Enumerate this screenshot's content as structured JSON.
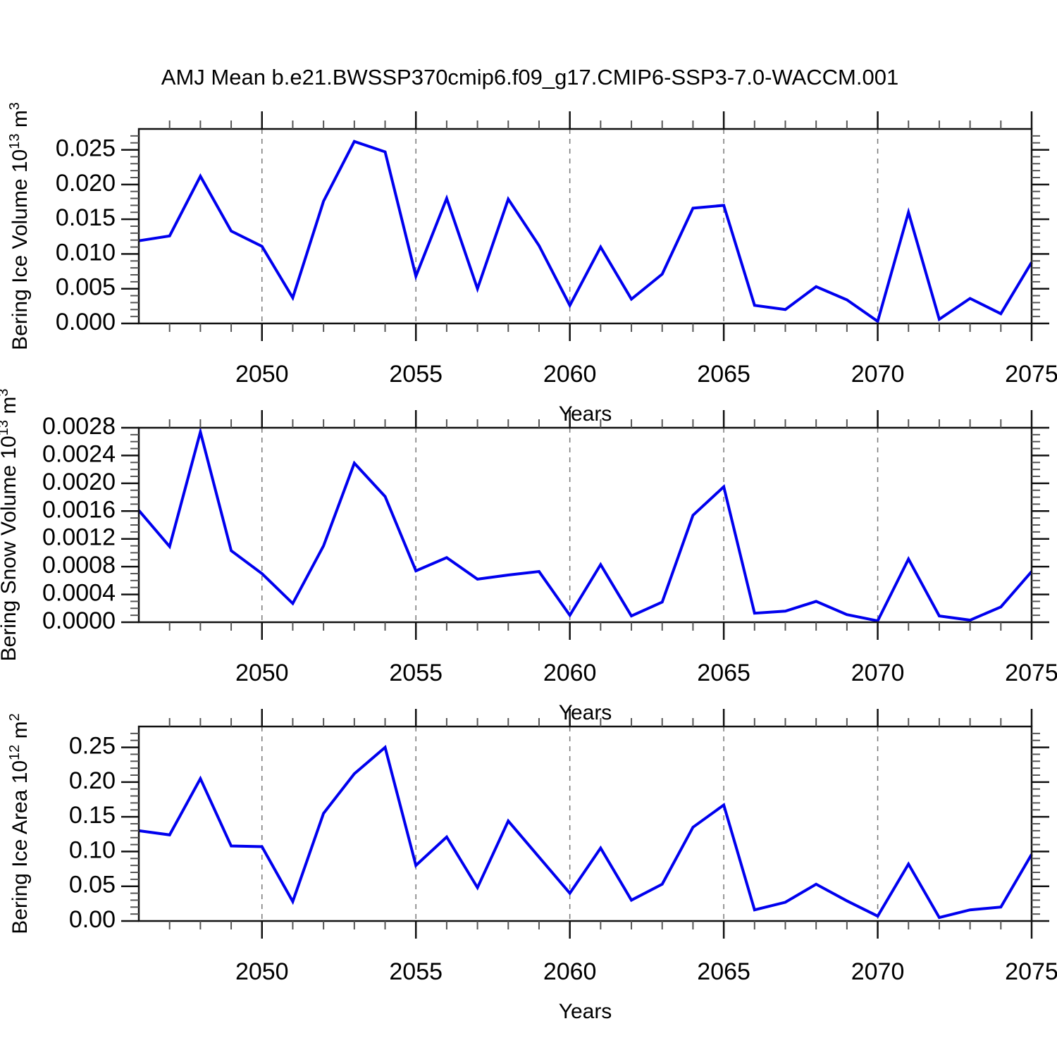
{
  "title": "AMJ Mean b.e21.BWSSP370cmip6.f09_g17.CMIP6-SSP3-7.0-WACCM.001",
  "line_color": "#0000ee",
  "frame_color": "#111111",
  "grid_color": "#777777",
  "x_axis": {
    "label": "Years",
    "min": 2046,
    "max": 2075,
    "labeled_ticks": [
      2050,
      2055,
      2060,
      2065,
      2070,
      2075
    ],
    "grid_years": [
      2050,
      2055,
      2060,
      2065,
      2070
    ]
  },
  "years": [
    2046,
    2047,
    2048,
    2049,
    2050,
    2051,
    2052,
    2053,
    2054,
    2055,
    2056,
    2057,
    2058,
    2059,
    2060,
    2061,
    2062,
    2063,
    2064,
    2065,
    2066,
    2067,
    2068,
    2069,
    2070,
    2071,
    2072,
    2073,
    2074,
    2075
  ],
  "chart_data": [
    {
      "type": "line",
      "title": "Bering Ice Volume",
      "ylabel": "Bering Ice Volume 10^13 m^3",
      "ylabel_parts": [
        {
          "t": "Bering Ice Volume 10"
        },
        {
          "t": "13",
          "sup": true
        },
        {
          "t": " m"
        },
        {
          "t": "3",
          "sup": true
        }
      ],
      "ylabel_x": 38,
      "ylim": [
        0,
        0.028
      ],
      "y_tick_values": [
        0.0,
        0.005,
        0.01,
        0.015,
        0.02,
        0.025
      ],
      "y_tick_labels": [
        "0.000",
        "0.005",
        "0.010",
        "0.015",
        "0.020",
        "0.025"
      ],
      "y_minor_step": 0.001,
      "values": [
        0.0119,
        0.0126,
        0.0212,
        0.0133,
        0.0111,
        0.0037,
        0.0176,
        0.0262,
        0.0247,
        0.0068,
        0.018,
        0.005,
        0.0179,
        0.0112,
        0.0026,
        0.011,
        0.0035,
        0.0071,
        0.0166,
        0.017,
        0.0026,
        0.002,
        0.0053,
        0.0034,
        0.0003,
        0.016,
        0.0006,
        0.0036,
        0.0014,
        0.0088
      ]
    },
    {
      "type": "line",
      "title": "Bering Snow Volume",
      "ylabel": "Bering Snow Volume 10^13 m^3",
      "ylabel_parts": [
        {
          "t": "Bering Snow Volume 10"
        },
        {
          "t": "13",
          "sup": true
        },
        {
          "t": " m"
        },
        {
          "t": "3",
          "sup": true
        }
      ],
      "ylabel_x": 22,
      "ylim": [
        0,
        0.0028
      ],
      "y_tick_values": [
        0.0,
        0.0004,
        0.0008,
        0.0012,
        0.0016,
        0.002,
        0.0024,
        0.0028
      ],
      "y_tick_labels": [
        "0.0000",
        "0.0004",
        "0.0008",
        "0.0012",
        "0.0016",
        "0.0020",
        "0.0024",
        "0.0028"
      ],
      "y_minor_step": 0.0001,
      "values": [
        0.00161,
        0.00109,
        0.00274,
        0.00103,
        0.0007,
        0.00027,
        0.0011,
        0.00229,
        0.00181,
        0.00074,
        0.00093,
        0.00062,
        0.00068,
        0.00073,
        0.0001,
        0.00083,
        9e-05,
        0.00029,
        0.00154,
        0.00195,
        0.00013,
        0.00016,
        0.0003,
        0.00011,
        2e-05,
        0.00091,
        9e-05,
        3e-05,
        0.00022,
        0.00073
      ]
    },
    {
      "type": "line",
      "title": "Bering Ice Area",
      "ylabel": "Bering Ice Area 10^12 m^2",
      "ylabel_parts": [
        {
          "t": "Bering Ice Area 10"
        },
        {
          "t": "12",
          "sup": true
        },
        {
          "t": " m"
        },
        {
          "t": "2",
          "sup": true
        }
      ],
      "ylabel_x": 38,
      "ylim": [
        0,
        0.28
      ],
      "y_tick_values": [
        0.0,
        0.05,
        0.1,
        0.15,
        0.2,
        0.25
      ],
      "y_tick_labels": [
        "0.00",
        "0.05",
        "0.10",
        "0.15",
        "0.20",
        "0.25"
      ],
      "y_minor_step": 0.01,
      "values": [
        0.13,
        0.124,
        0.205,
        0.108,
        0.107,
        0.028,
        0.155,
        0.212,
        0.25,
        0.08,
        0.121,
        0.048,
        0.144,
        0.092,
        0.04,
        0.105,
        0.03,
        0.053,
        0.135,
        0.167,
        0.016,
        0.027,
        0.053,
        0.029,
        0.007,
        0.082,
        0.005,
        0.016,
        0.02,
        0.096
      ]
    }
  ]
}
